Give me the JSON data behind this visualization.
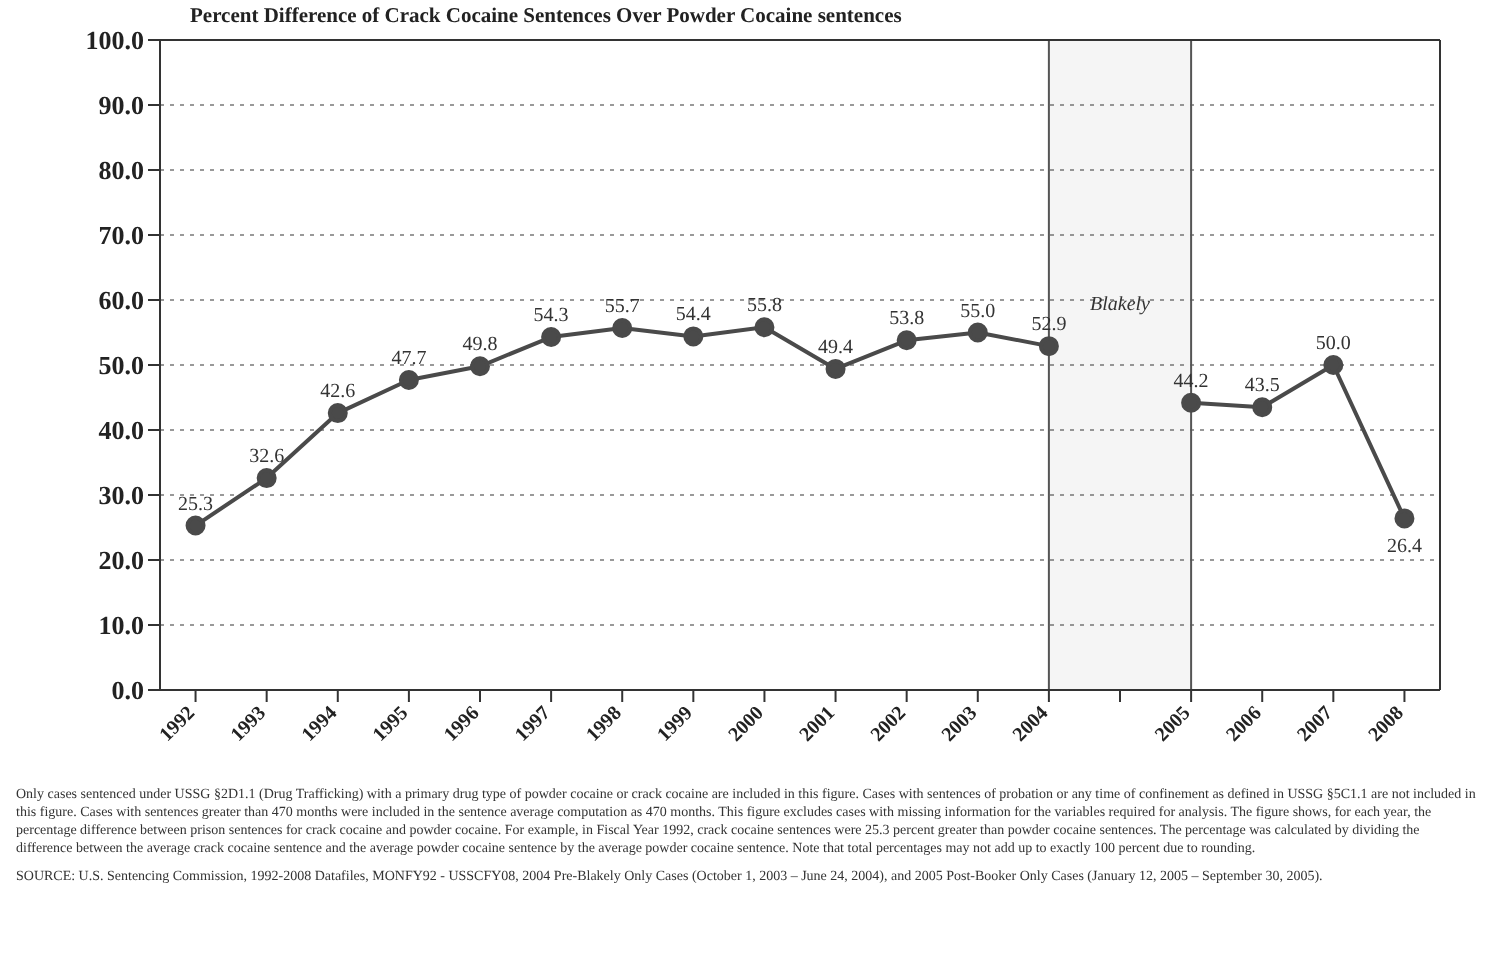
{
  "chart_data": {
    "type": "line",
    "title": "Percent Difference of Crack Cocaine Sentences Over Powder Cocaine sentences",
    "categories": [
      "1992",
      "1993",
      "1994",
      "1995",
      "1996",
      "1997",
      "1998",
      "1999",
      "2000",
      "2001",
      "2002",
      "2003",
      "2004",
      null,
      "2005",
      "2006",
      "2007",
      "2008"
    ],
    "series": [
      {
        "color": "#4a4a4a",
        "values": [
          25.3,
          32.6,
          42.6,
          47.7,
          49.8,
          54.3,
          55.7,
          54.4,
          55.8,
          49.4,
          53.8,
          55.0,
          52.9,
          null,
          44.2,
          43.5,
          50.0,
          26.4
        ],
        "value_labels": [
          "25.3",
          "32.6",
          "42.6",
          "47.7",
          "49.8",
          "54.3",
          "55.7",
          "54.4",
          "55.8",
          "49.4",
          "53.8",
          "55.0",
          "52.9",
          null,
          "44.2",
          "43.5",
          "50.0",
          "26.4"
        ]
      }
    ],
    "ylim": [
      0,
      100
    ],
    "yticks": [
      {
        "value": 0,
        "label": "0.0"
      },
      {
        "value": 10,
        "label": "10.0"
      },
      {
        "value": 20,
        "label": "20.0"
      },
      {
        "value": 30,
        "label": "30.0"
      },
      {
        "value": 40,
        "label": "40.0"
      },
      {
        "value": 50,
        "label": "50.0"
      },
      {
        "value": 60,
        "label": "60.0"
      },
      {
        "value": 70,
        "label": "70.0"
      },
      {
        "value": 80,
        "label": "80.0"
      },
      {
        "value": 90,
        "label": "90.0"
      },
      {
        "value": 100,
        "label": "100.0"
      }
    ],
    "grid": "y",
    "marker": "circle",
    "line_style": "solid",
    "bands": [
      {
        "axis": "x",
        "from": "2004",
        "to": "2005",
        "label": "Blakely",
        "color": "#555555"
      }
    ],
    "annotations": [
      "Only cases sentenced under USSG §2D1.1 (Drug Trafficking) with a primary drug type of powder cocaine or crack cocaine are included in this figure. Cases with sentences of probation or any time of confinement as defined in USSG §5C1.1 are not included in this figure. Cases with sentences greater than 470 months were included in the sentence average computation as 470 months. This figure excludes cases with missing information for the variables required for analysis. The figure shows, for each year, the percentage difference between prison sentences for crack cocaine and powder cocaine. For example, in Fiscal Year 1992, crack cocaine sentences were 25.3 percent greater than powder cocaine sentences. The percentage was calculated by dividing the difference between the average crack cocaine sentence and the average powder cocaine sentence by the average powder cocaine sentence. Note that total percentages may not add up to exactly 100 percent due to rounding.",
      "SOURCE: U.S. Sentencing Commission, 1992-2008 Datafiles, MONFY92 - USSCFY08, 2004 Pre-Blakely Only Cases (October 1, 2003 – June 24, 2004), and 2005 Post-Booker Only Cases (January 12, 2005 – September 30, 2005)."
    ]
  }
}
